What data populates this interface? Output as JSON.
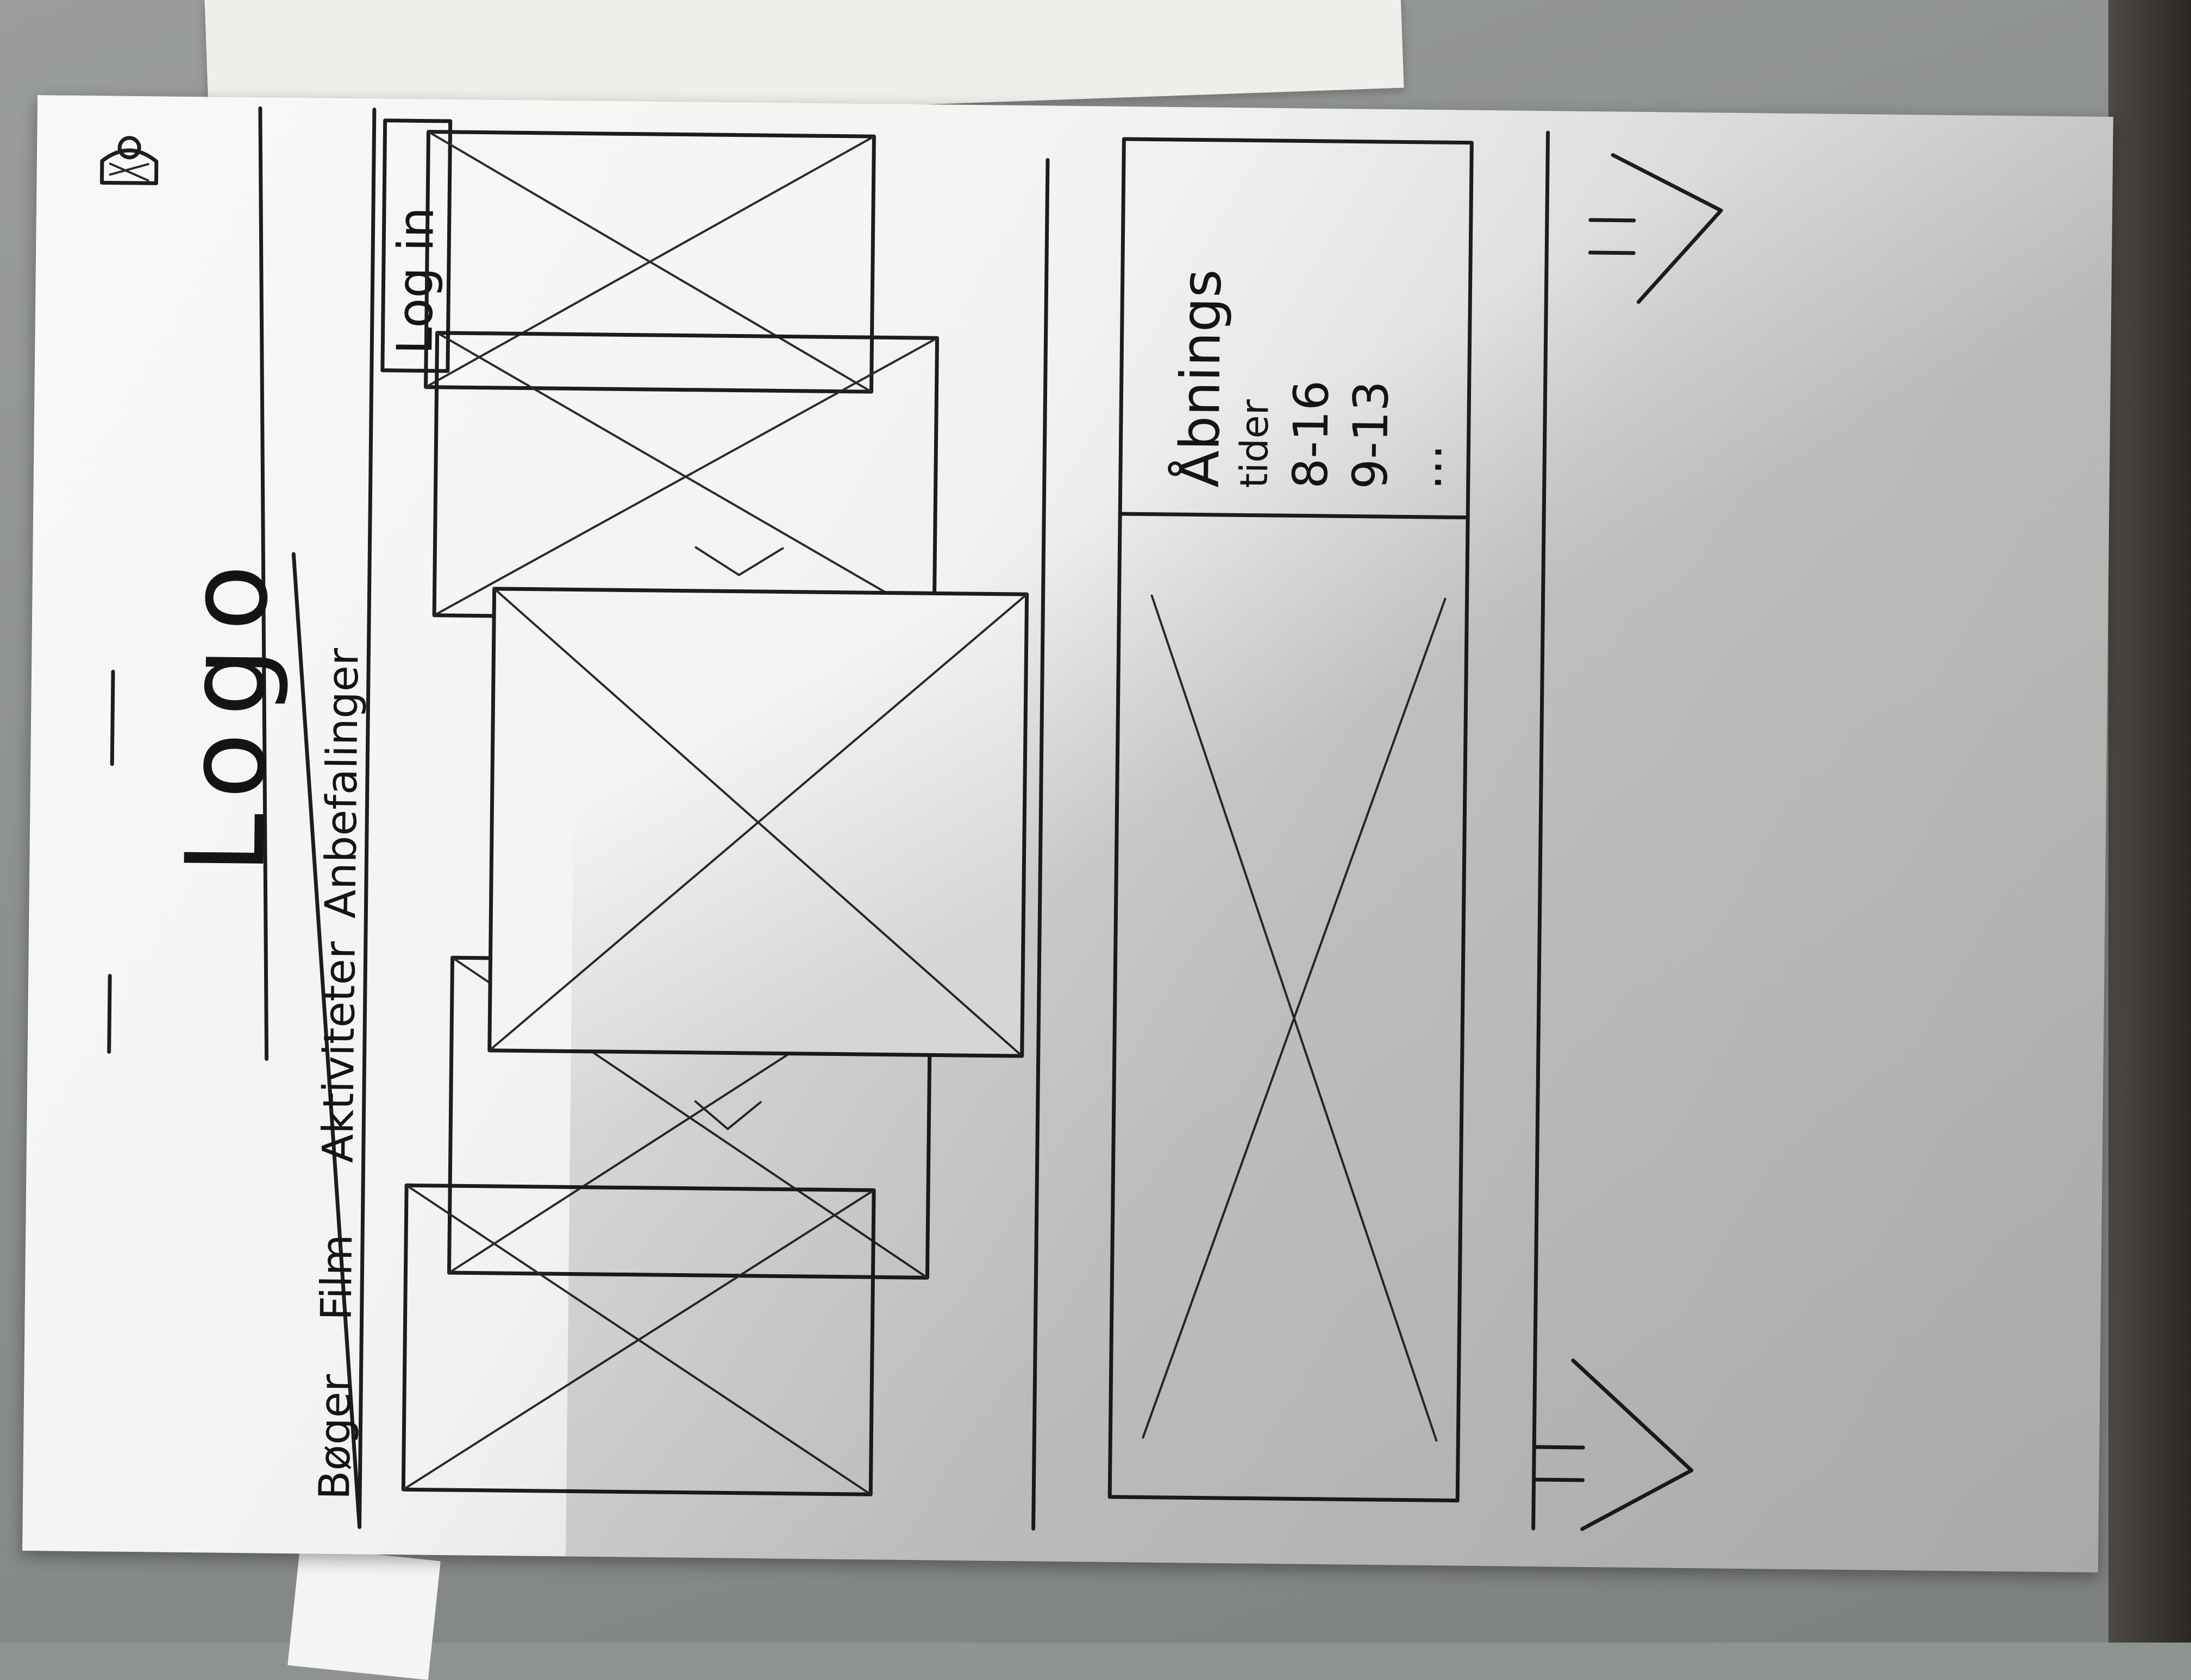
{
  "header": {
    "logo_text": "Logo",
    "user_icon": "person-icon"
  },
  "nav": {
    "items": [
      {
        "label": "Bøger"
      },
      {
        "label": "Film"
      },
      {
        "label": "Aktiviteter"
      },
      {
        "label": "Anbefalinger"
      }
    ],
    "login_label": "Log in"
  },
  "carousel": {
    "placeholder_icon": "image-placeholder-icon",
    "prev_icon": "arrow-left-icon",
    "next_icon": "arrow-right-icon"
  },
  "info_box": {
    "title": "Åbnings",
    "subtitle": "tider",
    "hours": [
      "8-16",
      "9-13"
    ],
    "more": "..."
  },
  "footer": {
    "left_arrow": "arrow-icon",
    "right_arrow": "arrow-icon"
  }
}
